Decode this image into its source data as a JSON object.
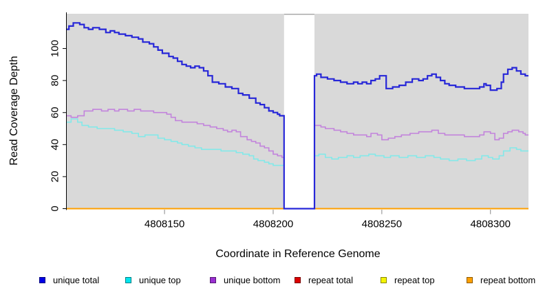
{
  "chart_data": {
    "type": "line",
    "subtype": "step-after",
    "title": "",
    "xlabel": "Coordinate in Reference Genome",
    "ylabel": "Read Coverage Depth",
    "xlim": [
      4808105,
      4808317.5
    ],
    "ylim": [
      0,
      121.7
    ],
    "x_ticks": [
      "4808150",
      "4808200",
      "4808250",
      "4808300"
    ],
    "y_ticks": [
      "0",
      "20",
      "40",
      "60",
      "80",
      "100"
    ],
    "grid": false,
    "legend_position": "bottom",
    "plot_background": "#D9D9D9",
    "gap": {
      "x_start": 4808205,
      "x_end": 4808219,
      "fill": "#FFFFFF",
      "top_edge_color": "#A9A9A9",
      "note": "all coverage drops to 0 in this interval"
    },
    "series": [
      {
        "name": "repeat total",
        "color": "#DC0000",
        "width": 1.6,
        "points": [
          [
            4808105,
            0
          ]
        ]
      },
      {
        "name": "repeat top",
        "color": "#F5F500",
        "width": 1.6,
        "points": [
          [
            4808105,
            0
          ]
        ]
      },
      {
        "name": "repeat bottom",
        "color": "#FFA000",
        "width": 2,
        "points": [
          [
            4808105,
            0
          ]
        ]
      },
      {
        "name": "unique bottom",
        "color": "#C283DC",
        "width": 1.6,
        "points": [
          [
            4808105,
            58
          ],
          [
            4808107,
            57
          ],
          [
            4808110,
            58
          ],
          [
            4808113,
            61
          ],
          [
            4808117,
            62
          ],
          [
            4808121,
            61
          ],
          [
            4808124,
            62
          ],
          [
            4808127,
            61
          ],
          [
            4808129,
            62
          ],
          [
            4808133,
            61
          ],
          [
            4808136,
            62
          ],
          [
            4808139,
            61
          ],
          [
            4808142,
            61
          ],
          [
            4808145,
            60
          ],
          [
            4808148,
            60
          ],
          [
            4808151,
            59
          ],
          [
            4808153,
            57
          ],
          [
            4808155,
            55
          ],
          [
            4808158,
            54
          ],
          [
            4808162,
            54
          ],
          [
            4808165,
            53
          ],
          [
            4808168,
            52
          ],
          [
            4808171,
            51
          ],
          [
            4808174,
            50
          ],
          [
            4808177,
            49
          ],
          [
            4808179,
            48
          ],
          [
            4808181,
            49
          ],
          [
            4808183,
            48
          ],
          [
            4808185,
            45
          ],
          [
            4808188,
            43
          ],
          [
            4808190,
            42
          ],
          [
            4808192,
            41
          ],
          [
            4808194,
            39
          ],
          [
            4808196,
            38
          ],
          [
            4808198,
            36
          ],
          [
            4808200,
            34
          ],
          [
            4808202,
            33
          ],
          [
            4808204,
            32
          ],
          [
            4808205,
            0
          ],
          [
            4808219,
            52
          ],
          [
            4808222,
            51
          ],
          [
            4808224,
            50
          ],
          [
            4808228,
            49
          ],
          [
            4808231,
            48
          ],
          [
            4808234,
            47
          ],
          [
            4808237,
            46
          ],
          [
            4808240,
            46
          ],
          [
            4808243,
            45
          ],
          [
            4808245,
            47
          ],
          [
            4808248,
            46
          ],
          [
            4808250,
            43
          ],
          [
            4808253,
            44
          ],
          [
            4808256,
            45
          ],
          [
            4808259,
            46
          ],
          [
            4808263,
            47
          ],
          [
            4808267,
            48
          ],
          [
            4808271,
            48
          ],
          [
            4808273,
            49
          ],
          [
            4808276,
            47
          ],
          [
            4808279,
            46
          ],
          [
            4808284,
            46
          ],
          [
            4808288,
            45
          ],
          [
            4808292,
            45
          ],
          [
            4808295,
            46
          ],
          [
            4808297,
            48
          ],
          [
            4808300,
            47
          ],
          [
            4808302,
            43
          ],
          [
            4808304,
            44
          ],
          [
            4808306,
            47
          ],
          [
            4808308,
            48
          ],
          [
            4808310,
            49
          ],
          [
            4808313,
            48
          ],
          [
            4808315,
            47
          ],
          [
            4808316,
            46
          ]
        ]
      },
      {
        "name": "unique top",
        "color": "#82E9E9",
        "width": 1.6,
        "points": [
          [
            4808105,
            54
          ],
          [
            4808107,
            56
          ],
          [
            4808110,
            54
          ],
          [
            4808112,
            52
          ],
          [
            4808115,
            51
          ],
          [
            4808119,
            50
          ],
          [
            4808123,
            50
          ],
          [
            4808127,
            49
          ],
          [
            4808131,
            48
          ],
          [
            4808135,
            47
          ],
          [
            4808138,
            45
          ],
          [
            4808141,
            46
          ],
          [
            4808144,
            46
          ],
          [
            4808147,
            44
          ],
          [
            4808150,
            43
          ],
          [
            4808153,
            42
          ],
          [
            4808156,
            41
          ],
          [
            4808158,
            40
          ],
          [
            4808161,
            39
          ],
          [
            4808164,
            38
          ],
          [
            4808167,
            37
          ],
          [
            4808172,
            37
          ],
          [
            4808176,
            36
          ],
          [
            4808180,
            36
          ],
          [
            4808183,
            35
          ],
          [
            4808186,
            34
          ],
          [
            4808189,
            33
          ],
          [
            4808191,
            31
          ],
          [
            4808193,
            30
          ],
          [
            4808196,
            29
          ],
          [
            4808198,
            28
          ],
          [
            4808200,
            27
          ],
          [
            4808203,
            27
          ],
          [
            4808205,
            0
          ],
          [
            4808219,
            33
          ],
          [
            4808221,
            34
          ],
          [
            4808224,
            32
          ],
          [
            4808227,
            31
          ],
          [
            4808230,
            32
          ],
          [
            4808234,
            33
          ],
          [
            4808237,
            32
          ],
          [
            4808240,
            33
          ],
          [
            4808244,
            34
          ],
          [
            4808247,
            33
          ],
          [
            4808251,
            32
          ],
          [
            4808254,
            33
          ],
          [
            4808258,
            32
          ],
          [
            4808262,
            33
          ],
          [
            4808266,
            32
          ],
          [
            4808270,
            33
          ],
          [
            4808274,
            32
          ],
          [
            4808277,
            31
          ],
          [
            4808281,
            30
          ],
          [
            4808285,
            31
          ],
          [
            4808289,
            30
          ],
          [
            4808293,
            31
          ],
          [
            4808296,
            33
          ],
          [
            4808299,
            32
          ],
          [
            4808301,
            31
          ],
          [
            4808304,
            33
          ],
          [
            4808306,
            36
          ],
          [
            4808309,
            38
          ],
          [
            4808312,
            37
          ],
          [
            4808314,
            36
          ]
        ]
      },
      {
        "name": "unique total",
        "color": "#2626D8",
        "width": 2.2,
        "points": [
          [
            4808105,
            112
          ],
          [
            4808106,
            114
          ],
          [
            4808108,
            116
          ],
          [
            4808111,
            115
          ],
          [
            4808113,
            113
          ],
          [
            4808115,
            112
          ],
          [
            4808117,
            113
          ],
          [
            4808120,
            112
          ],
          [
            4808123,
            110
          ],
          [
            4808125,
            111
          ],
          [
            4808127,
            110
          ],
          [
            4808129,
            109
          ],
          [
            4808132,
            108
          ],
          [
            4808135,
            107
          ],
          [
            4808138,
            106
          ],
          [
            4808140,
            104
          ],
          [
            4808143,
            103
          ],
          [
            4808145,
            101
          ],
          [
            4808147,
            99
          ],
          [
            4808149,
            97
          ],
          [
            4808152,
            95
          ],
          [
            4808154,
            94
          ],
          [
            4808156,
            92
          ],
          [
            4808158,
            90
          ],
          [
            4808160,
            89
          ],
          [
            4808162,
            88
          ],
          [
            4808164,
            89
          ],
          [
            4808166,
            88
          ],
          [
            4808168,
            86
          ],
          [
            4808170,
            83
          ],
          [
            4808172,
            79
          ],
          [
            4808175,
            78
          ],
          [
            4808178,
            76
          ],
          [
            4808181,
            75
          ],
          [
            4808184,
            72
          ],
          [
            4808186,
            71
          ],
          [
            4808189,
            69
          ],
          [
            4808192,
            66
          ],
          [
            4808194,
            65
          ],
          [
            4808196,
            63
          ],
          [
            4808198,
            61
          ],
          [
            4808200,
            60
          ],
          [
            4808202,
            59
          ],
          [
            4808203,
            58
          ],
          [
            4808205,
            0
          ],
          [
            4808219,
            83
          ],
          [
            4808220,
            84
          ],
          [
            4808222,
            82
          ],
          [
            4808225,
            81
          ],
          [
            4808228,
            80
          ],
          [
            4808231,
            79
          ],
          [
            4808234,
            78
          ],
          [
            4808237,
            79
          ],
          [
            4808239,
            78
          ],
          [
            4808241,
            79
          ],
          [
            4808243,
            78
          ],
          [
            4808245,
            80
          ],
          [
            4808247,
            81
          ],
          [
            4808249,
            83
          ],
          [
            4808252,
            75
          ],
          [
            4808255,
            76
          ],
          [
            4808258,
            77
          ],
          [
            4808261,
            79
          ],
          [
            4808264,
            81
          ],
          [
            4808267,
            80
          ],
          [
            4808269,
            81
          ],
          [
            4808271,
            83
          ],
          [
            4808273,
            84
          ],
          [
            4808275,
            82
          ],
          [
            4808277,
            80
          ],
          [
            4808279,
            78
          ],
          [
            4808281,
            77
          ],
          [
            4808284,
            76
          ],
          [
            4808288,
            75
          ],
          [
            4808293,
            75
          ],
          [
            4808295,
            76
          ],
          [
            4808297,
            78
          ],
          [
            4808298,
            77
          ],
          [
            4808300,
            74
          ],
          [
            4808303,
            75
          ],
          [
            4808305,
            79
          ],
          [
            4808306,
            84
          ],
          [
            4808308,
            87
          ],
          [
            4808310,
            88
          ],
          [
            4808312,
            86
          ],
          [
            4808314,
            84
          ],
          [
            4808316,
            83
          ]
        ]
      }
    ]
  },
  "legend": {
    "items": [
      {
        "label": "unique total",
        "fill": "#0000E6"
      },
      {
        "label": "unique top",
        "fill": "#00E5EE"
      },
      {
        "label": "unique bottom",
        "fill": "#9A2FD1"
      },
      {
        "label": "repeat total",
        "fill": "#DC0000"
      },
      {
        "label": "repeat top",
        "fill": "#F5F500"
      },
      {
        "label": "repeat bottom",
        "fill": "#FFA000"
      }
    ]
  }
}
